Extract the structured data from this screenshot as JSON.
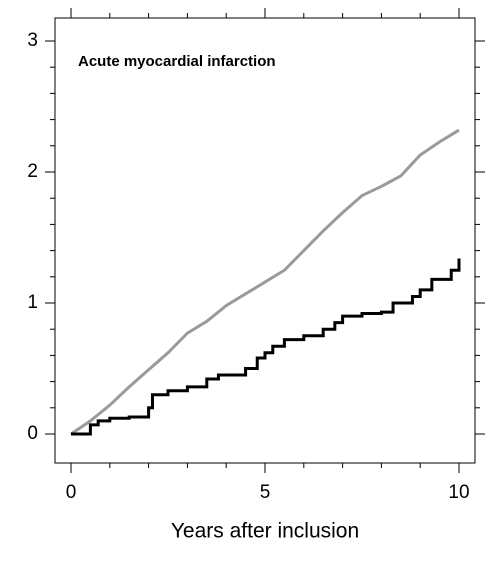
{
  "chart_data": {
    "type": "line",
    "title": "Acute myocardial infarction",
    "xlabel": "Years after inclusion",
    "xlim": [
      0,
      10
    ],
    "ylim": [
      0,
      3
    ],
    "xticks": [
      0,
      5,
      10
    ],
    "yticks": [
      0,
      1,
      2,
      3
    ],
    "xminorticks": [
      1,
      2,
      3,
      4,
      6,
      7,
      8,
      9
    ],
    "yminorticks": [
      0.2,
      0.4,
      0.6,
      0.8,
      1.2,
      1.4,
      1.6,
      1.8,
      2.2,
      2.4,
      2.6,
      2.8
    ],
    "series": [
      {
        "color": "#9a9a9a",
        "step": false,
        "x": [
          0,
          0.5,
          1,
          1.5,
          2,
          2.5,
          3,
          3.5,
          4,
          4.5,
          5,
          5.5,
          6,
          6.5,
          7,
          7.5,
          8,
          8.5,
          9,
          9.5,
          10
        ],
        "values": [
          0,
          0.1,
          0.22,
          0.36,
          0.49,
          0.62,
          0.77,
          0.86,
          0.98,
          1.07,
          1.16,
          1.25,
          1.4,
          1.55,
          1.69,
          1.82,
          1.89,
          1.97,
          2.13,
          2.23,
          2.32
        ]
      },
      {
        "color": "#000000",
        "step": true,
        "x": [
          0,
          0.5,
          0.7,
          1,
          1.5,
          2,
          2.1,
          2.5,
          3,
          3.5,
          3.8,
          4.5,
          4.8,
          5,
          5.2,
          5.5,
          6,
          6.5,
          6.8,
          7,
          7.5,
          8,
          8.3,
          8.8,
          9,
          9.3,
          9.8,
          10
        ],
        "values": [
          0,
          0.07,
          0.1,
          0.12,
          0.13,
          0.2,
          0.3,
          0.33,
          0.36,
          0.42,
          0.45,
          0.5,
          0.58,
          0.62,
          0.67,
          0.72,
          0.75,
          0.8,
          0.85,
          0.9,
          0.92,
          0.93,
          1.0,
          1.05,
          1.1,
          1.18,
          1.25,
          1.34
        ]
      }
    ]
  }
}
